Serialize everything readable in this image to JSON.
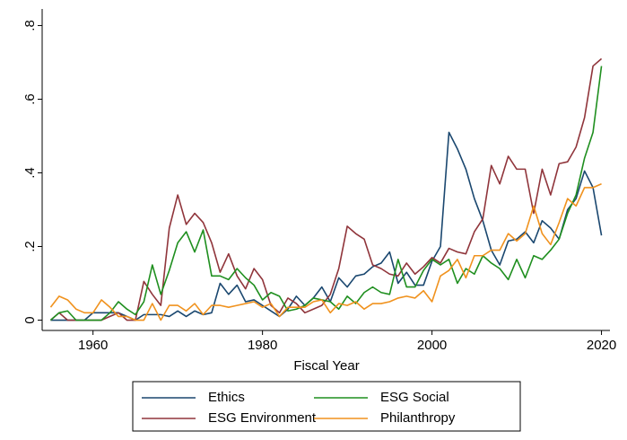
{
  "chart_data": {
    "type": "line",
    "x_label": "Fiscal Year",
    "x": [
      1955,
      1956,
      1957,
      1958,
      1959,
      1960,
      1961,
      1962,
      1963,
      1964,
      1965,
      1966,
      1967,
      1968,
      1969,
      1970,
      1971,
      1972,
      1973,
      1974,
      1975,
      1976,
      1977,
      1978,
      1979,
      1980,
      1981,
      1982,
      1983,
      1984,
      1985,
      1986,
      1987,
      1988,
      1989,
      1990,
      1991,
      1992,
      1993,
      1994,
      1995,
      1996,
      1997,
      1998,
      1999,
      2000,
      2001,
      2002,
      2003,
      2004,
      2005,
      2006,
      2007,
      2008,
      2009,
      2010,
      2011,
      2012,
      2013,
      2014,
      2015,
      2016,
      2017,
      2018,
      2019,
      2020
    ],
    "xlim": [
      1954,
      2021
    ],
    "xticks": [
      1960,
      1980,
      2000,
      2020
    ],
    "ylim": [
      -0.028,
      0.845
    ],
    "yticks": [
      0,
      {
        "value": 0.2,
        "label": ".2"
      },
      {
        "value": 0.4,
        "label": ".4"
      },
      {
        "value": 0.6,
        "label": ".6"
      },
      {
        "value": 0.8,
        "label": ".8"
      }
    ],
    "grid": false,
    "series": [
      {
        "name": "Ethics",
        "color": "#1a476f",
        "values": [
          0,
          0,
          0,
          0,
          0,
          0.02,
          0.02,
          0.02,
          0.02,
          0.01,
          0,
          0.015,
          0.015,
          0.015,
          0.01,
          0.025,
          0.01,
          0.025,
          0.015,
          0.02,
          0.1,
          0.07,
          0.095,
          0.05,
          0.055,
          0.04,
          0.025,
          0.01,
          0.03,
          0.065,
          0.04,
          0.06,
          0.09,
          0.05,
          0.115,
          0.09,
          0.12,
          0.125,
          0.145,
          0.155,
          0.185,
          0.1,
          0.13,
          0.095,
          0.095,
          0.16,
          0.2,
          0.51,
          0.465,
          0.41,
          0.33,
          0.27,
          0.19,
          0.15,
          0.215,
          0.22,
          0.24,
          0.21,
          0.27,
          0.25,
          0.22,
          0.3,
          0.33,
          0.405,
          0.36,
          0.23
        ]
      },
      {
        "name": "ESG Environment",
        "color": "#90353b",
        "values": [
          0,
          0.02,
          0,
          0,
          0,
          0,
          0,
          0.01,
          0.02,
          0,
          0,
          0.105,
          0.07,
          0.04,
          0.25,
          0.34,
          0.26,
          0.29,
          0.265,
          0.21,
          0.13,
          0.18,
          0.12,
          0.085,
          0.14,
          0.11,
          0.04,
          0.02,
          0.06,
          0.045,
          0.02,
          0.03,
          0.04,
          0.07,
          0.14,
          0.255,
          0.235,
          0.22,
          0.15,
          0.14,
          0.125,
          0.12,
          0.155,
          0.125,
          0.145,
          0.17,
          0.155,
          0.195,
          0.185,
          0.18,
          0.24,
          0.275,
          0.42,
          0.37,
          0.445,
          0.41,
          0.41,
          0.29,
          0.41,
          0.34,
          0.425,
          0.43,
          0.47,
          0.55,
          0.69,
          0.71
        ]
      },
      {
        "name": "ESG Social",
        "color": "#1f8f1f",
        "values": [
          0,
          0.02,
          0.025,
          0,
          0,
          0,
          0,
          0.02,
          0.05,
          0.03,
          0.015,
          0.05,
          0.15,
          0.07,
          0.135,
          0.21,
          0.24,
          0.185,
          0.245,
          0.12,
          0.12,
          0.11,
          0.14,
          0.115,
          0.095,
          0.055,
          0.075,
          0.065,
          0.025,
          0.03,
          0.04,
          0.06,
          0.055,
          0.05,
          0.03,
          0.065,
          0.045,
          0.075,
          0.09,
          0.075,
          0.07,
          0.165,
          0.09,
          0.09,
          0.135,
          0.165,
          0.15,
          0.165,
          0.1,
          0.14,
          0.125,
          0.175,
          0.155,
          0.14,
          0.11,
          0.165,
          0.115,
          0.175,
          0.165,
          0.19,
          0.22,
          0.29,
          0.34,
          0.44,
          0.51,
          0.69
        ]
      },
      {
        "name": "Philanthropy",
        "color": "#f0921e",
        "values": [
          0.035,
          0.065,
          0.055,
          0.03,
          0.02,
          0.02,
          0.055,
          0.035,
          0.01,
          0.01,
          0,
          0,
          0.045,
          0,
          0.04,
          0.04,
          0.025,
          0.045,
          0.015,
          0.04,
          0.04,
          0.035,
          0.04,
          0.045,
          0.05,
          0.035,
          0.045,
          0.01,
          0.035,
          0.035,
          0.035,
          0.05,
          0.055,
          0.02,
          0.045,
          0.04,
          0.05,
          0.03,
          0.045,
          0.045,
          0.05,
          0.06,
          0.065,
          0.06,
          0.08,
          0.05,
          0.12,
          0.135,
          0.165,
          0.115,
          0.175,
          0.175,
          0.19,
          0.19,
          0.235,
          0.215,
          0.235,
          0.31,
          0.235,
          0.205,
          0.265,
          0.33,
          0.31,
          0.36,
          0.36,
          0.37
        ]
      }
    ]
  }
}
